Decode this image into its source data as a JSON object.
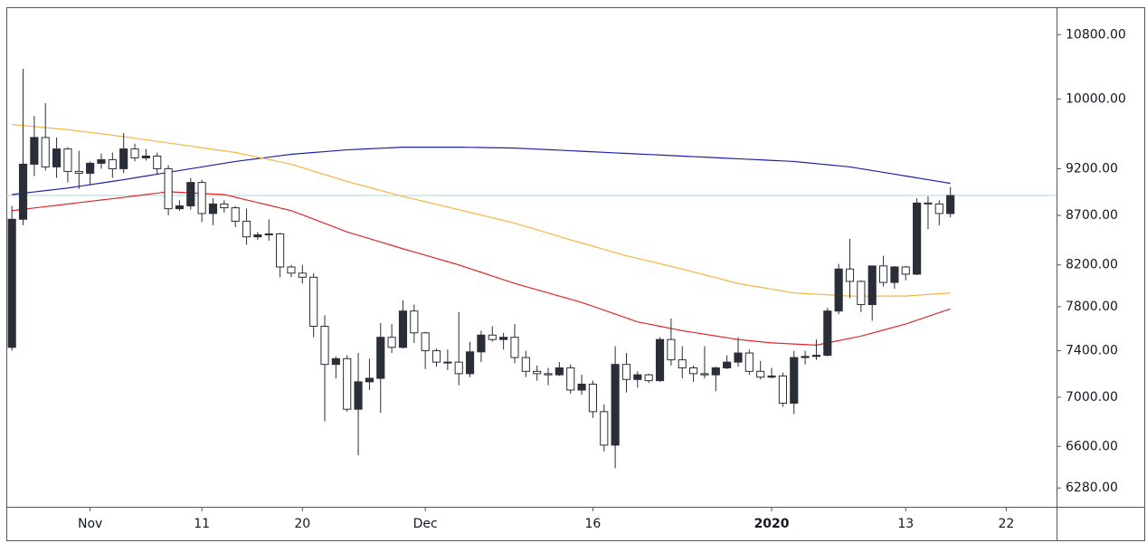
{
  "chart_data": {
    "type": "candlestick",
    "categories": [
      null,
      null,
      null,
      null,
      null,
      null,
      null,
      "Nov",
      null,
      null,
      null,
      null,
      null,
      null,
      null,
      null,
      null,
      "11",
      null,
      null,
      null,
      null,
      null,
      null,
      null,
      null,
      "20",
      null,
      null,
      null,
      null,
      null,
      null,
      null,
      null,
      null,
      null,
      "Dec",
      null,
      null,
      null,
      null,
      null,
      null,
      null,
      null,
      null,
      null,
      null,
      null,
      null,
      null,
      "16",
      null,
      null,
      null,
      null,
      null,
      null,
      null,
      null,
      null,
      null,
      null,
      null,
      null,
      null,
      null,
      "2020",
      null,
      null,
      null,
      null,
      null,
      null,
      null,
      null,
      null,
      null,
      null,
      "13",
      null,
      null,
      null,
      null,
      null,
      null,
      null,
      null,
      "22",
      null,
      null,
      null,
      null
    ],
    "candles": {
      "open": [
        7430,
        8660,
        9250,
        9550,
        9220,
        9420,
        9170,
        9150,
        9260,
        9300,
        9200,
        9420,
        9320,
        9340,
        9200,
        8770,
        8800,
        9050,
        8720,
        8820,
        8780,
        8640,
        8480,
        8500,
        8510,
        8180,
        8120,
        8080,
        7620,
        7280,
        7330,
        6900,
        7130,
        7160,
        7520,
        7430,
        7760,
        7560,
        7400,
        7300,
        7300,
        7200,
        7390,
        7540,
        7500,
        7520,
        7340,
        7220,
        7200,
        7190,
        7250,
        7060,
        7110,
        6880,
        6610,
        7280,
        7150,
        7190,
        7140,
        7500,
        7320,
        7250,
        7200,
        7190,
        7250,
        7300,
        7380,
        7220,
        7170,
        7180,
        6950,
        7340,
        7350,
        7360,
        7760,
        8160,
        8040,
        7820,
        8190,
        8030,
        8180,
        8110,
        8830,
        8820,
        8720,
        null,
        null,
        null,
        null,
        null,
        null,
        null,
        null,
        null
      ],
      "high": [
        8800,
        10370,
        9800,
        9950,
        9550,
        9440,
        9400,
        9280,
        9370,
        9380,
        9600,
        9480,
        9420,
        9380,
        9240,
        8860,
        9100,
        9080,
        8880,
        8860,
        8800,
        8770,
        8530,
        8660,
        8520,
        8200,
        8200,
        8120,
        7720,
        7350,
        7360,
        7380,
        7330,
        7650,
        7640,
        7860,
        7820,
        7570,
        7420,
        7410,
        7750,
        7480,
        7580,
        7620,
        7560,
        7640,
        7400,
        7270,
        7250,
        7300,
        7280,
        7190,
        7140,
        6940,
        7440,
        7380,
        7220,
        7200,
        7520,
        7690,
        7440,
        7270,
        7440,
        7260,
        7360,
        7520,
        7410,
        7310,
        7250,
        7210,
        7400,
        7400,
        7500,
        7790,
        8210,
        8460,
        8050,
        8190,
        8290,
        8190,
        8190,
        8880,
        8900,
        8860,
        9000,
        null,
        null,
        null,
        null,
        null,
        null,
        null,
        null,
        null
      ],
      "low": [
        7400,
        8600,
        9120,
        9180,
        9100,
        9050,
        8980,
        9020,
        9200,
        9100,
        9150,
        9280,
        9290,
        9140,
        8700,
        8750,
        8760,
        8630,
        8600,
        8730,
        8580,
        8400,
        8450,
        8440,
        8080,
        8080,
        8020,
        7520,
        6800,
        7160,
        6880,
        6530,
        7060,
        6870,
        7380,
        7420,
        7470,
        7240,
        7260,
        7230,
        7100,
        7170,
        7300,
        7480,
        7410,
        7290,
        7170,
        7140,
        7100,
        7180,
        7030,
        7020,
        6830,
        6560,
        6430,
        7040,
        7080,
        7120,
        7130,
        7270,
        7160,
        7130,
        7160,
        7050,
        7240,
        7260,
        7190,
        7150,
        7160,
        6920,
        6860,
        7280,
        7320,
        7350,
        7730,
        7880,
        7750,
        7670,
        7990,
        7970,
        8050,
        8100,
        8560,
        8600,
        8680,
        null,
        null,
        null,
        null,
        null,
        null,
        null,
        null,
        null
      ],
      "close": [
        8660,
        9250,
        9550,
        9220,
        9420,
        9170,
        9150,
        9260,
        9300,
        9200,
        9420,
        9320,
        9340,
        9200,
        8770,
        8800,
        9050,
        8720,
        8820,
        8780,
        8640,
        8480,
        8500,
        8510,
        8180,
        8120,
        8080,
        7620,
        7280,
        7330,
        6900,
        7130,
        7160,
        7520,
        7430,
        7760,
        7560,
        7400,
        7300,
        7300,
        7200,
        7390,
        7540,
        7500,
        7520,
        7340,
        7220,
        7200,
        7190,
        7250,
        7060,
        7110,
        6880,
        6610,
        7280,
        7150,
        7190,
        7140,
        7500,
        7320,
        7250,
        7200,
        7190,
        7250,
        7300,
        7380,
        7220,
        7170,
        7180,
        6950,
        7340,
        7350,
        7360,
        7760,
        8160,
        8040,
        7820,
        8190,
        8030,
        8180,
        8110,
        8830,
        8820,
        8720,
        8910,
        null,
        null,
        null,
        null,
        null,
        null,
        null,
        null,
        null
      ]
    },
    "up_color": "#2a2e39",
    "down_color": "#ffffff",
    "wick_color": "#2a2e39",
    "lines": [
      {
        "color": "#1e22aa",
        "values": [
          8920,
          8934,
          8948,
          8962,
          8976,
          8990,
          9008,
          9026,
          9044,
          9062,
          9080,
          9100,
          9120,
          9140,
          9160,
          9180,
          9200,
          9220,
          9240,
          9260,
          9280,
          9296,
          9312,
          9328,
          9344,
          9360,
          9370,
          9380,
          9390,
          9400,
          9410,
          9416,
          9422,
          9428,
          9434,
          9440,
          9440,
          9440,
          9440,
          9440,
          9440,
          9438,
          9436,
          9434,
          9432,
          9430,
          9424,
          9418,
          9412,
          9406,
          9400,
          9394,
          9388,
          9382,
          9376,
          9370,
          9364,
          9358,
          9352,
          9346,
          9340,
          9334,
          9328,
          9322,
          9316,
          9310,
          9304,
          9298,
          9292,
          9286,
          9280,
          9268,
          9256,
          9244,
          9232,
          9220,
          9200,
          9180,
          9160,
          9140,
          9120,
          9100,
          9080,
          9060,
          9040,
          null,
          null,
          null,
          null,
          null,
          null,
          null,
          null,
          null
        ]
      },
      {
        "color": "#f5b642",
        "values": [
          9700,
          9688,
          9676,
          9664,
          9652,
          9640,
          9624,
          9608,
          9592,
          9576,
          9560,
          9542,
          9524,
          9506,
          9488,
          9470,
          9452,
          9434,
          9416,
          9398,
          9380,
          9354,
          9328,
          9302,
          9276,
          9250,
          9212,
          9174,
          9136,
          9098,
          9060,
          9028,
          8996,
          8964,
          8932,
          8900,
          8872,
          8844,
          8816,
          8788,
          8760,
          8732,
          8704,
          8676,
          8648,
          8620,
          8586,
          8552,
          8518,
          8484,
          8450,
          8418,
          8386,
          8354,
          8322,
          8290,
          8264,
          8238,
          8212,
          8186,
          8160,
          8132,
          8104,
          8076,
          8048,
          8020,
          8002,
          7984,
          7966,
          7948,
          7930,
          7924,
          7918,
          7912,
          7906,
          7900,
          7900,
          7900,
          7900,
          7900,
          7900,
          7908,
          7915,
          7922,
          7930,
          null,
          null,
          null,
          null,
          null,
          null,
          null,
          null,
          null
        ]
      },
      {
        "color": "#e0282a",
        "values": [
          8750,
          8764,
          8778,
          8792,
          8806,
          8820,
          8834,
          8848,
          8862,
          8876,
          8890,
          8905,
          8920,
          8935,
          8950,
          8944,
          8938,
          8932,
          8926,
          8920,
          8892,
          8863,
          8835,
          8807,
          8778,
          8750,
          8706,
          8662,
          8618,
          8574,
          8530,
          8496,
          8462,
          8428,
          8394,
          8360,
          8328,
          8296,
          8264,
          8232,
          8200,
          8164,
          8128,
          8092,
          8056,
          8020,
          7990,
          7960,
          7930,
          7900,
          7870,
          7840,
          7804,
          7768,
          7732,
          7696,
          7660,
          7640,
          7620,
          7600,
          7580,
          7564,
          7548,
          7532,
          7516,
          7500,
          7490,
          7480,
          7470,
          7465,
          7460,
          7455,
          7450,
          7470,
          7490,
          7510,
          7530,
          7558,
          7585,
          7613,
          7640,
          7675,
          7710,
          7745,
          7780,
          null,
          null,
          null,
          null,
          null,
          null,
          null,
          null,
          null
        ]
      }
    ],
    "price_line_color": "#a8d8d8",
    "ylim": [
      6140,
      11160
    ],
    "log_scale": true,
    "yticks": [
      {
        "value": 6280,
        "label": "6280.00"
      },
      {
        "value": 6600,
        "label": "6600.00"
      },
      {
        "value": 7000,
        "label": "7000.00"
      },
      {
        "value": 7400,
        "label": "7400.00"
      },
      {
        "value": 7800,
        "label": "7800.00"
      },
      {
        "value": 8200,
        "label": "8200.00"
      },
      {
        "value": 8700,
        "label": "8700.00"
      },
      {
        "value": 9200,
        "label": "9200.00"
      },
      {
        "value": 10000,
        "label": "10000.00"
      },
      {
        "value": 10800,
        "label": "10800.00"
      }
    ]
  }
}
